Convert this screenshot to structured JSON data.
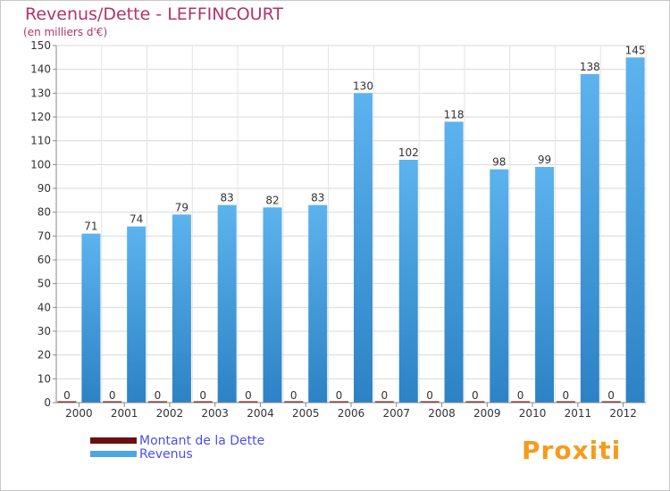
{
  "header": {
    "title": "Revenus/Dette - LEFFINCOURT",
    "subtitle": "(en milliers d'€)"
  },
  "chart_data": {
    "type": "bar",
    "title": "Revenus/Dette - LEFFINCOURT",
    "subtitle": "(en milliers d'€)",
    "xlabel": "",
    "ylabel": "",
    "ylim": [
      0,
      150
    ],
    "yticks": [
      0,
      10,
      20,
      30,
      40,
      50,
      60,
      70,
      80,
      90,
      100,
      110,
      120,
      130,
      140,
      150
    ],
    "grid": true,
    "categories": [
      "2000",
      "2001",
      "2002",
      "2003",
      "2004",
      "2005",
      "2006",
      "2007",
      "2008",
      "2009",
      "2010",
      "2011",
      "2012"
    ],
    "series": [
      {
        "name": "Montant de la Dette",
        "color": "#6e0e0e",
        "values": [
          0,
          0,
          0,
          0,
          0,
          0,
          0,
          0,
          0,
          0,
          0,
          0,
          0
        ]
      },
      {
        "name": "Revenus",
        "color": "#4ea5e4",
        "values": [
          71,
          74,
          79,
          83,
          82,
          83,
          130,
          102,
          118,
          98,
          99,
          138,
          145
        ]
      }
    ],
    "legend_position": "bottom-left"
  },
  "legend": {
    "items": [
      {
        "label": "Montant de la Dette",
        "color": "#6e0e0e"
      },
      {
        "label": "Revenus",
        "color": "#4ea5e4"
      }
    ]
  },
  "logo": {
    "text": "Proxiti"
  }
}
